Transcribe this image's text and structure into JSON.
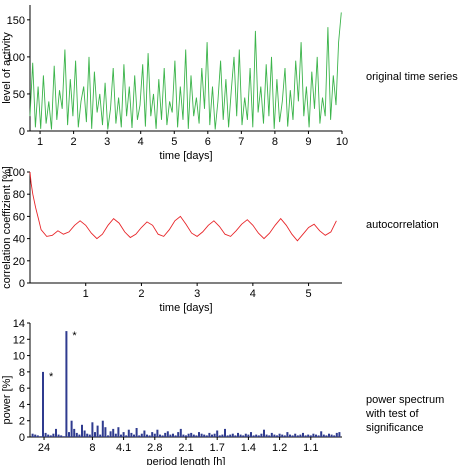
{
  "chart_data": [
    {
      "type": "line",
      "xlabel": "time [days]",
      "ylabel": "level of activity",
      "side_label": "original time series",
      "xlim": [
        0.7,
        10
      ],
      "ylim": [
        0,
        170
      ],
      "x_ticks": [
        1,
        2,
        3,
        4,
        5,
        6,
        7,
        8,
        9,
        10
      ],
      "y_ticks": [
        0,
        50,
        100,
        150
      ],
      "color": "#3cb44b",
      "series": [
        {
          "x": [
            0.7,
            0.78,
            0.86,
            0.94,
            1.02,
            1.1,
            1.18,
            1.26,
            1.34,
            1.42,
            1.5,
            1.58,
            1.66,
            1.74,
            1.82,
            1.9,
            1.98,
            2.06,
            2.14,
            2.22,
            2.3,
            2.38,
            2.46,
            2.54,
            2.62,
            2.7,
            2.78,
            2.86,
            2.94,
            3.02,
            3.1,
            3.18,
            3.26,
            3.34,
            3.42,
            3.5,
            3.58,
            3.66,
            3.74,
            3.82,
            3.9,
            3.98,
            4.06,
            4.14,
            4.22,
            4.3,
            4.38,
            4.46,
            4.54,
            4.62,
            4.7,
            4.78,
            4.86,
            4.94,
            5.02,
            5.1,
            5.18,
            5.26,
            5.34,
            5.42,
            5.5,
            5.58,
            5.66,
            5.74,
            5.82,
            5.9,
            5.98,
            6.06,
            6.14,
            6.22,
            6.3,
            6.38,
            6.46,
            6.54,
            6.62,
            6.7,
            6.78,
            6.86,
            6.94,
            7.02,
            7.1,
            7.18,
            7.26,
            7.34,
            7.42,
            7.5,
            7.58,
            7.66,
            7.74,
            7.82,
            7.9,
            7.98,
            8.06,
            8.14,
            8.22,
            8.3,
            8.38,
            8.46,
            8.54,
            8.62,
            8.7,
            8.78,
            8.86,
            8.94,
            9.02,
            9.1,
            9.18,
            9.26,
            9.34,
            9.42,
            9.5,
            9.58,
            9.66,
            9.74,
            9.82,
            9.9,
            9.98
          ],
          "y": [
            20,
            92,
            5,
            60,
            3,
            75,
            10,
            40,
            2,
            88,
            15,
            55,
            30,
            110,
            8,
            70,
            20,
            95,
            5,
            40,
            60,
            12,
            100,
            3,
            80,
            25,
            50,
            8,
            65,
            2,
            30,
            85,
            10,
            45,
            5,
            90,
            20,
            60,
            4,
            75,
            15,
            35,
            90,
            6,
            105,
            20,
            50,
            3,
            70,
            15,
            85,
            8,
            40,
            25,
            95,
            5,
            60,
            15,
            110,
            3,
            75,
            20,
            45,
            10,
            85,
            30,
            120,
            8,
            60,
            2,
            40,
            95,
            15,
            70,
            5,
            55,
            100,
            20,
            110,
            8,
            45,
            15,
            85,
            5,
            135,
            25,
            60,
            10,
            90,
            20,
            100,
            3,
            70,
            12,
            40,
            85,
            6,
            55,
            15,
            95,
            40,
            120,
            20,
            60,
            5,
            80,
            30,
            100,
            10,
            45,
            20,
            140,
            15,
            75,
            35,
            120,
            160
          ]
        }
      ]
    },
    {
      "type": "line",
      "xlabel": "time [days]",
      "ylabel": "correlation coeffizient [%]",
      "side_label": "autocorrelation",
      "xlim": [
        0,
        5.6
      ],
      "ylim": [
        0,
        100
      ],
      "x_ticks": [
        1,
        2,
        3,
        4,
        5
      ],
      "y_ticks": [
        0,
        20,
        40,
        60,
        80,
        100
      ],
      "color": "#e8262a",
      "series": [
        {
          "x": [
            0.0,
            0.02,
            0.05,
            0.1,
            0.15,
            0.2,
            0.3,
            0.4,
            0.5,
            0.6,
            0.7,
            0.8,
            0.9,
            1.0,
            1.1,
            1.2,
            1.3,
            1.4,
            1.5,
            1.6,
            1.7,
            1.8,
            1.9,
            2.0,
            2.1,
            2.2,
            2.3,
            2.4,
            2.5,
            2.6,
            2.7,
            2.8,
            2.9,
            3.0,
            3.1,
            3.2,
            3.3,
            3.4,
            3.5,
            3.6,
            3.7,
            3.8,
            3.9,
            4.0,
            4.1,
            4.2,
            4.3,
            4.4,
            4.5,
            4.6,
            4.7,
            4.8,
            4.9,
            5.0,
            5.1,
            5.2,
            5.3,
            5.4,
            5.5
          ],
          "y": [
            100,
            90,
            80,
            68,
            58,
            48,
            42,
            43,
            47,
            44,
            46,
            52,
            56,
            52,
            45,
            40,
            44,
            52,
            58,
            54,
            46,
            41,
            44,
            50,
            55,
            52,
            44,
            42,
            48,
            56,
            60,
            53,
            45,
            42,
            46,
            52,
            56,
            51,
            44,
            42,
            47,
            53,
            57,
            52,
            45,
            40,
            45,
            52,
            58,
            52,
            44,
            38,
            44,
            50,
            53,
            47,
            43,
            46,
            56
          ]
        }
      ]
    },
    {
      "type": "bar",
      "xlabel": "period length [h]",
      "ylabel": "power [%]",
      "side_label": [
        "power spectrum",
        "with test of significance"
      ],
      "xlim": [
        0,
        120
      ],
      "ylim": [
        0,
        14
      ],
      "x_tick_labels": [
        "24",
        "8",
        "4.1",
        "2.8",
        "2.1",
        "1.7",
        "1.4",
        "1.2",
        "1.1"
      ],
      "y_ticks": [
        0,
        2,
        4,
        6,
        8,
        10,
        12,
        14
      ],
      "color": "#2f3b8f",
      "annotations": [
        "*",
        "*"
      ],
      "bars": {
        "x": [
          1,
          2,
          3,
          4,
          5,
          6,
          7,
          8,
          9,
          10,
          11,
          12,
          13,
          14,
          15,
          16,
          17,
          18,
          19,
          20,
          21,
          22,
          23,
          24,
          25,
          26,
          27,
          28,
          29,
          30,
          31,
          32,
          33,
          34,
          35,
          36,
          37,
          38,
          39,
          40,
          41,
          42,
          43,
          44,
          45,
          46,
          47,
          48,
          49,
          50,
          51,
          52,
          53,
          54,
          55,
          56,
          57,
          58,
          59,
          60,
          61,
          62,
          63,
          64,
          65,
          66,
          67,
          68,
          69,
          70,
          71,
          72,
          73,
          74,
          75,
          76,
          77,
          78,
          79,
          80,
          81,
          82,
          83,
          84,
          85,
          86,
          87,
          88,
          89,
          90,
          91,
          92,
          93,
          94,
          95,
          96,
          97,
          98,
          99,
          100,
          101,
          102,
          103,
          104,
          105,
          106,
          107,
          108,
          109,
          110,
          111,
          112,
          113,
          114,
          115,
          116,
          117,
          118,
          119
        ],
        "values": [
          0.4,
          0.3,
          0.2,
          0.1,
          8.0,
          0.5,
          0.3,
          0.2,
          0.4,
          1.0,
          0.3,
          0.2,
          0.1,
          13.0,
          0.6,
          2.0,
          1.0,
          0.5,
          0.3,
          1.5,
          0.8,
          0.4,
          0.3,
          1.8,
          0.6,
          1.4,
          0.3,
          2.0,
          1.2,
          0.2,
          0.7,
          1.0,
          0.4,
          1.2,
          0.3,
          0.6,
          0.2,
          0.9,
          0.5,
          0.3,
          1.1,
          0.2,
          0.4,
          0.8,
          0.3,
          0.2,
          0.6,
          0.4,
          0.9,
          0.3,
          0.2,
          0.5,
          0.7,
          0.3,
          0.4,
          0.2,
          0.6,
          1.0,
          0.3,
          0.2,
          0.4,
          0.5,
          0.3,
          0.2,
          0.6,
          0.4,
          0.3,
          0.2,
          0.5,
          0.3,
          0.4,
          0.8,
          0.2,
          0.3,
          1.0,
          0.2,
          0.3,
          0.4,
          0.2,
          0.5,
          0.3,
          0.2,
          0.4,
          0.3,
          0.6,
          0.2,
          0.3,
          0.2,
          0.4,
          0.9,
          0.3,
          0.2,
          0.5,
          0.3,
          0.2,
          0.4,
          0.3,
          0.2,
          0.6,
          0.3,
          0.2,
          0.4,
          0.2,
          0.3,
          0.5,
          0.2,
          0.3,
          0.2,
          0.4,
          0.3,
          0.2,
          0.7,
          0.3,
          0.2,
          0.4,
          0.3,
          0.2,
          0.5,
          0.6
        ]
      }
    }
  ]
}
